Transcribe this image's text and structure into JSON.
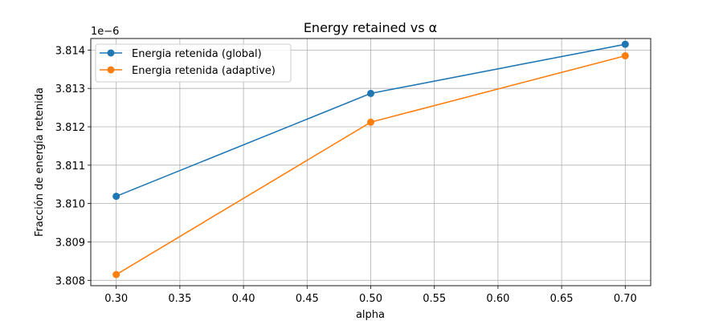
{
  "chart_data": {
    "type": "line",
    "title": "Energy retained vs α",
    "xlabel": "alpha",
    "ylabel": "Fracción de energía retenida",
    "y_offset_label": "1e−6",
    "y_scale_factor": 1e-06,
    "xlim": [
      0.28,
      0.72
    ],
    "ylim": [
      3.80786,
      3.8143
    ],
    "x_ticks": [
      0.3,
      0.35,
      0.4,
      0.45,
      0.5,
      0.55,
      0.6,
      0.65,
      0.7
    ],
    "x_tick_labels": [
      "0.30",
      "0.35",
      "0.40",
      "0.45",
      "0.50",
      "0.55",
      "0.60",
      "0.65",
      "0.70"
    ],
    "y_ticks": [
      3.808,
      3.809,
      3.81,
      3.811,
      3.812,
      3.813,
      3.814
    ],
    "y_tick_labels": [
      "3.808",
      "3.809",
      "3.810",
      "3.811",
      "3.812",
      "3.813",
      "3.814"
    ],
    "grid": true,
    "legend_position": "top-left",
    "x": [
      0.3,
      0.5,
      0.7
    ],
    "series": [
      {
        "name": "Energia retenida (global)",
        "color": "#1f77b4",
        "marker": "circle",
        "values": [
          3.81019,
          3.81287,
          3.81415
        ]
      },
      {
        "name": "Energia retenida (adaptive)",
        "color": "#ff7f0e",
        "marker": "circle",
        "values": [
          3.80815,
          3.81212,
          3.81385
        ]
      }
    ]
  }
}
